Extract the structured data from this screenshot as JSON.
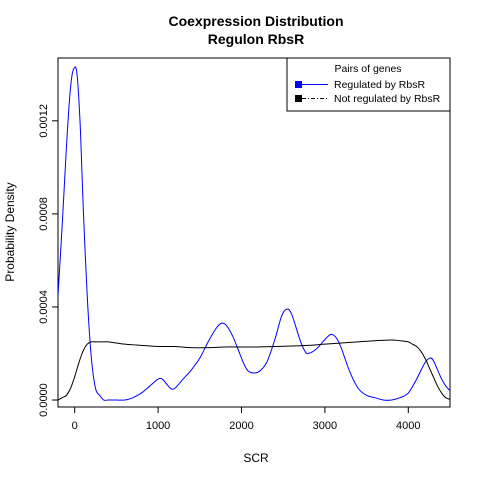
{
  "chart_data": {
    "type": "line",
    "title": "Coexpression Distribution",
    "subtitle": "Regulon RbsR",
    "xlabel": "SCR",
    "ylabel": "Probability Density",
    "xlim": [
      -200,
      4500
    ],
    "ylim": [
      -3e-05,
      0.00147
    ],
    "x_ticks": [
      0,
      1000,
      2000,
      3000,
      4000
    ],
    "y_ticks": [
      0.0,
      0.0004,
      0.0008,
      0.0012
    ],
    "y_tick_labels": [
      "0.0000",
      "0.0004",
      "0.0008",
      "0.0012"
    ],
    "legend": {
      "title": "Pairs of genes",
      "position": "top-right",
      "entries": [
        "Regulated by  RbsR",
        "Not regulated by  RbsR"
      ]
    },
    "series": [
      {
        "name": "Regulated by  RbsR",
        "color": "#0000ff",
        "x": [
          -200,
          -150,
          -100,
          -60,
          -30,
          0,
          20,
          40,
          70,
          100,
          150,
          200,
          250,
          300,
          350,
          400,
          450,
          500,
          600,
          700,
          800,
          900,
          1000,
          1050,
          1100,
          1150,
          1200,
          1300,
          1400,
          1500,
          1600,
          1700,
          1760,
          1820,
          1900,
          2000,
          2050,
          2100,
          2200,
          2300,
          2400,
          2480,
          2540,
          2600,
          2700,
          2760,
          2800,
          2900,
          3000,
          3060,
          3100,
          3150,
          3200,
          3300,
          3400,
          3500,
          3600,
          3700,
          3800,
          3900,
          4000,
          4100,
          4200,
          4260,
          4300,
          4350,
          4400,
          4450,
          4500
        ],
        "values": [
          0.00045,
          0.00075,
          0.00108,
          0.0013,
          0.0014,
          0.00143,
          0.00142,
          0.00135,
          0.00115,
          0.00085,
          0.00045,
          0.00018,
          5e-05,
          2e-05,
          0.0,
          0.0,
          0.0,
          0.0,
          0.0,
          1e-05,
          3e-05,
          6e-05,
          9e-05,
          9e-05,
          7e-05,
          5e-05,
          5e-05,
          9e-05,
          0.00013,
          0.00018,
          0.00025,
          0.00031,
          0.00033,
          0.00032,
          0.00027,
          0.00018,
          0.00014,
          0.00012,
          0.00012,
          0.00016,
          0.00026,
          0.00036,
          0.00039,
          0.00037,
          0.00026,
          0.00021,
          0.0002,
          0.00022,
          0.00026,
          0.00028,
          0.00028,
          0.00026,
          0.00022,
          0.00012,
          5e-05,
          2e-05,
          1e-05,
          0.0,
          0.0,
          1e-05,
          3e-05,
          9e-05,
          0.00016,
          0.00018,
          0.00017,
          0.00013,
          9e-05,
          6e-05,
          4e-05
        ]
      },
      {
        "name": "Not regulated by  RbsR",
        "color": "#000000",
        "x": [
          -200,
          -150,
          -100,
          -50,
          0,
          50,
          100,
          150,
          200,
          250,
          300,
          400,
          500,
          600,
          800,
          1000,
          1200,
          1400,
          1600,
          1800,
          2000,
          2200,
          2400,
          2600,
          2800,
          3000,
          3200,
          3400,
          3600,
          3800,
          3900,
          4000,
          4050,
          4100,
          4150,
          4200,
          4250,
          4300,
          4350,
          4400,
          4450,
          4500
        ],
        "values": [
          0.0,
          1e-05,
          2e-05,
          5e-05,
          0.0001,
          0.00016,
          0.00021,
          0.00024,
          0.00025,
          0.00025,
          0.00025,
          0.00025,
          0.000245,
          0.00024,
          0.000235,
          0.00023,
          0.00023,
          0.000225,
          0.000225,
          0.000228,
          0.000228,
          0.000228,
          0.00023,
          0.000232,
          0.000235,
          0.00024,
          0.000245,
          0.00025,
          0.000255,
          0.000258,
          0.000255,
          0.00025,
          0.00024,
          0.00023,
          0.00021,
          0.00018,
          0.00014,
          0.0001,
          6e-05,
          3e-05,
          1e-05,
          3e-06
        ]
      }
    ]
  }
}
